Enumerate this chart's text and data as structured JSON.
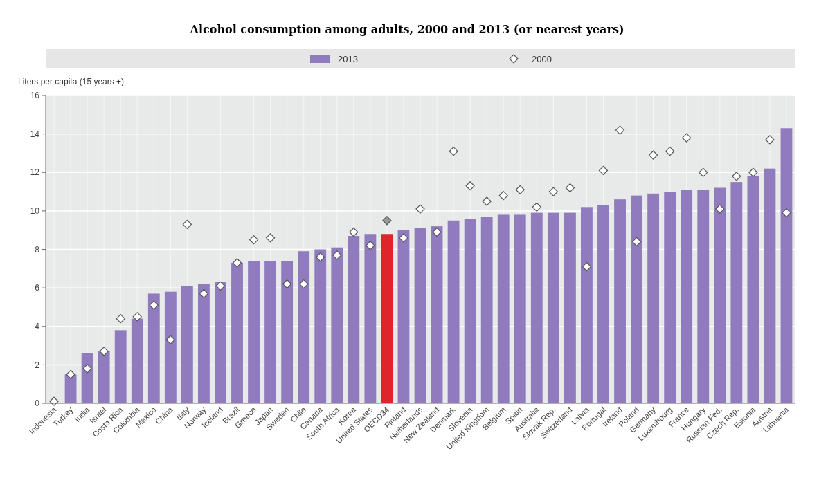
{
  "chart_data": {
    "type": "bar",
    "title": "Alcohol consumption among adults, 2000 and 2013 (or nearest years)",
    "ylabel": "Liters per capita (15 years +)",
    "categories": [
      "Indonesia",
      "Turkey",
      "India",
      "Israel",
      "Costa Rica",
      "Colombia",
      "Mexico",
      "China",
      "Italy",
      "Norway",
      "Iceland",
      "Brazil",
      "Greece",
      "Japan",
      "Sweden",
      "Chile",
      "Canada",
      "South Africa",
      "Korea",
      "United States",
      "OECD34",
      "Finland",
      "Netherlands",
      "New Zealand",
      "Denmark",
      "Slovenia",
      "United Kingdom",
      "Belgium",
      "Spain",
      "Australia",
      "Slovak Rep.",
      "Switzerland",
      "Latvia",
      "Portugal",
      "Ireland",
      "Poland",
      "Germany",
      "Luxembourg",
      "France",
      "Hungary",
      "Russian Fed.",
      "Czech Rep.",
      "Estonia",
      "Austria",
      "Lithuania"
    ],
    "series": [
      {
        "name": "2013",
        "color": "#8f7bbd",
        "colors": [
          null,
          "#8f7bbd",
          "#8f7bbd",
          "#8f7bbd",
          "#8f7bbd",
          "#8f7bbd",
          "#8f7bbd",
          "#8f7bbd",
          "#8f7bbd",
          "#8f7bbd",
          "#8f7bbd",
          "#8f7bbd",
          "#8f7bbd",
          "#8f7bbd",
          "#8f7bbd",
          "#8f7bbd",
          "#8f7bbd",
          "#8f7bbd",
          "#8f7bbd",
          "#8f7bbd",
          "#e0242b",
          "#8f7bbd",
          "#8f7bbd",
          "#8f7bbd",
          "#8f7bbd",
          "#8f7bbd",
          "#8f7bbd",
          "#8f7bbd",
          "#8f7bbd",
          "#8f7bbd",
          "#8f7bbd",
          "#8f7bbd",
          "#8f7bbd",
          "#8f7bbd",
          "#8f7bbd",
          "#8f7bbd",
          "#8f7bbd",
          "#8f7bbd",
          "#8f7bbd",
          "#8f7bbd",
          "#8f7bbd",
          "#8f7bbd",
          "#8f7bbd",
          "#8f7bbd",
          "#8f7bbd"
        ],
        "values": [
          null,
          1.5,
          2.6,
          2.7,
          3.8,
          4.4,
          5.7,
          5.8,
          6.1,
          6.2,
          6.3,
          7.3,
          7.4,
          7.4,
          7.4,
          7.9,
          8.0,
          8.1,
          8.7,
          8.8,
          8.8,
          9.0,
          9.1,
          9.2,
          9.5,
          9.6,
          9.7,
          9.8,
          9.8,
          9.9,
          9.9,
          9.9,
          10.2,
          10.3,
          10.6,
          10.8,
          10.9,
          11.0,
          11.1,
          11.1,
          11.2,
          11.5,
          11.8,
          12.2,
          14.3
        ]
      },
      {
        "name": "2000",
        "type": "scatter",
        "marker": "diamond",
        "color": "#ffffff",
        "colors": [
          "#ffffff",
          "#ffffff",
          "#ffffff",
          "#ffffff",
          "#ffffff",
          "#ffffff",
          "#ffffff",
          "#ffffff",
          "#ffffff",
          "#ffffff",
          "#ffffff",
          "#ffffff",
          "#ffffff",
          "#ffffff",
          "#ffffff",
          "#ffffff",
          "#ffffff",
          "#ffffff",
          "#ffffff",
          "#ffffff",
          "#999999",
          "#ffffff",
          "#ffffff",
          "#ffffff",
          "#ffffff",
          "#ffffff",
          "#ffffff",
          "#ffffff",
          "#ffffff",
          "#ffffff",
          "#ffffff",
          "#ffffff",
          "#ffffff",
          "#ffffff",
          "#ffffff",
          "#ffffff",
          "#ffffff",
          "#ffffff",
          "#ffffff",
          "#ffffff",
          "#ffffff",
          "#ffffff",
          "#ffffff",
          "#ffffff",
          "#ffffff"
        ],
        "values": [
          0.1,
          1.5,
          1.8,
          2.7,
          4.4,
          4.5,
          5.1,
          3.3,
          9.3,
          5.7,
          6.1,
          7.3,
          8.5,
          8.6,
          6.2,
          6.2,
          7.6,
          7.7,
          8.9,
          8.2,
          9.5,
          8.6,
          10.1,
          8.9,
          13.1,
          11.3,
          10.5,
          10.8,
          11.1,
          10.2,
          11.0,
          11.2,
          7.1,
          12.1,
          14.2,
          8.4,
          12.9,
          13.1,
          13.8,
          12.0,
          10.1,
          11.8,
          12.0,
          13.7,
          9.9
        ]
      }
    ],
    "ylim": [
      0,
      16
    ],
    "yticks": [
      0,
      2,
      4,
      6,
      8,
      10,
      12,
      14,
      16
    ],
    "grid": true,
    "legend": "top"
  }
}
